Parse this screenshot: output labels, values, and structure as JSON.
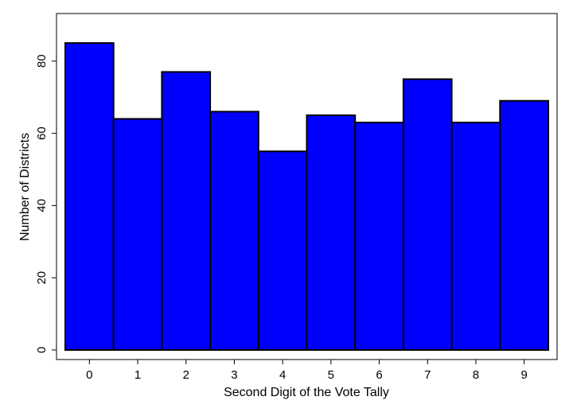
{
  "chart_data": {
    "type": "bar",
    "title": "",
    "xlabel": "Second Digit of the Vote Tally",
    "ylabel": "Number of Districts",
    "categories": [
      "0",
      "1",
      "2",
      "3",
      "4",
      "5",
      "6",
      "7",
      "8",
      "9"
    ],
    "values": [
      85,
      64,
      77,
      66,
      55,
      65,
      63,
      75,
      63,
      69
    ],
    "ylim": [
      0,
      88
    ],
    "yticks": [
      "0",
      "20",
      "40",
      "60",
      "80"
    ],
    "grid": false,
    "legend": "none",
    "bar_color": "#0000ff",
    "edge_color": "#000000"
  }
}
